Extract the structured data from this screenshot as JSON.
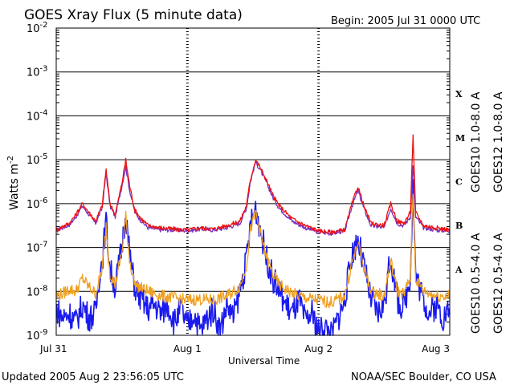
{
  "chart_data": {
    "type": "line",
    "title": "GOES Xray Flux (5 minute data)",
    "begin_label": "Begin:  2005 Jul 31 0000 UTC",
    "xlabel": "Universal Time",
    "ylabel_main": "Watts m",
    "ylabel_sup": "-2",
    "x_range_days": [
      0,
      3
    ],
    "x_ticks": [
      {
        "day": 0,
        "label": "Jul 31"
      },
      {
        "day": 1,
        "label": "Aug 1"
      },
      {
        "day": 2,
        "label": "Aug 2"
      },
      {
        "day": 3,
        "label": "Aug 3"
      }
    ],
    "y_scale": "log",
    "ylim_exponent": [
      -9,
      -2
    ],
    "y_ticks": [
      {
        "exp": -2,
        "label": "-2"
      },
      {
        "exp": -3,
        "label": "-3"
      },
      {
        "exp": -4,
        "label": "-4"
      },
      {
        "exp": -5,
        "label": "-5"
      },
      {
        "exp": -6,
        "label": "-6"
      },
      {
        "exp": -7,
        "label": "-7"
      },
      {
        "exp": -8,
        "label": "-8"
      },
      {
        "exp": -9,
        "label": "-9"
      }
    ],
    "flare_classes": [
      {
        "label": "X",
        "exp": -3.5
      },
      {
        "label": "M",
        "exp": -4.5
      },
      {
        "label": "C",
        "exp": -5.5
      },
      {
        "label": "B",
        "exp": -6.5
      },
      {
        "label": "A",
        "exp": -7.5
      }
    ],
    "series": [
      {
        "name": "GOES10 1.0-8.0 A",
        "color": "#7b2fbe",
        "points": [
          [
            0,
            -6.62
          ],
          [
            0.05,
            -6.55
          ],
          [
            0.1,
            -6.48
          ],
          [
            0.15,
            -6.3
          ],
          [
            0.2,
            -6.05
          ],
          [
            0.25,
            -6.25
          ],
          [
            0.3,
            -6.45
          ],
          [
            0.35,
            -6.1
          ],
          [
            0.38,
            -5.3
          ],
          [
            0.41,
            -6.05
          ],
          [
            0.45,
            -6.3
          ],
          [
            0.5,
            -5.6
          ],
          [
            0.53,
            -5.15
          ],
          [
            0.56,
            -5.7
          ],
          [
            0.6,
            -6.2
          ],
          [
            0.65,
            -6.4
          ],
          [
            0.7,
            -6.55
          ],
          [
            0.8,
            -6.6
          ],
          [
            0.9,
            -6.6
          ],
          [
            1.0,
            -6.62
          ],
          [
            1.1,
            -6.58
          ],
          [
            1.2,
            -6.6
          ],
          [
            1.3,
            -6.55
          ],
          [
            1.4,
            -6.45
          ],
          [
            1.45,
            -6.1
          ],
          [
            1.48,
            -5.5
          ],
          [
            1.52,
            -5.05
          ],
          [
            1.55,
            -5.2
          ],
          [
            1.6,
            -5.5
          ],
          [
            1.65,
            -5.85
          ],
          [
            1.7,
            -6.1
          ],
          [
            1.8,
            -6.4
          ],
          [
            1.9,
            -6.55
          ],
          [
            2.0,
            -6.65
          ],
          [
            2.1,
            -6.68
          ],
          [
            2.2,
            -6.62
          ],
          [
            2.25,
            -6.1
          ],
          [
            2.3,
            -5.7
          ],
          [
            2.35,
            -6.15
          ],
          [
            2.4,
            -6.5
          ],
          [
            2.5,
            -6.55
          ],
          [
            2.55,
            -6.1
          ],
          [
            2.6,
            -6.45
          ],
          [
            2.65,
            -6.5
          ],
          [
            2.7,
            -6.3
          ],
          [
            2.72,
            -5.1
          ],
          [
            2.74,
            -6.3
          ],
          [
            2.8,
            -6.55
          ],
          [
            2.9,
            -6.6
          ],
          [
            3.0,
            -6.62
          ]
        ]
      },
      {
        "name": "GOES12 1.0-8.0 A",
        "color": "#ee1111",
        "points": [
          [
            0,
            -6.6
          ],
          [
            0.05,
            -6.52
          ],
          [
            0.1,
            -6.45
          ],
          [
            0.15,
            -6.25
          ],
          [
            0.2,
            -6.0
          ],
          [
            0.25,
            -6.2
          ],
          [
            0.3,
            -6.4
          ],
          [
            0.35,
            -6.05
          ],
          [
            0.38,
            -5.22
          ],
          [
            0.41,
            -6.0
          ],
          [
            0.45,
            -6.25
          ],
          [
            0.5,
            -5.55
          ],
          [
            0.53,
            -5.0
          ],
          [
            0.56,
            -5.6
          ],
          [
            0.6,
            -6.15
          ],
          [
            0.65,
            -6.35
          ],
          [
            0.7,
            -6.5
          ],
          [
            0.8,
            -6.55
          ],
          [
            0.9,
            -6.58
          ],
          [
            1.0,
            -6.6
          ],
          [
            1.1,
            -6.55
          ],
          [
            1.2,
            -6.58
          ],
          [
            1.3,
            -6.5
          ],
          [
            1.4,
            -6.4
          ],
          [
            1.45,
            -6.05
          ],
          [
            1.48,
            -5.45
          ],
          [
            1.52,
            -5.0
          ],
          [
            1.55,
            -5.15
          ],
          [
            1.6,
            -5.45
          ],
          [
            1.65,
            -5.8
          ],
          [
            1.7,
            -6.05
          ],
          [
            1.8,
            -6.35
          ],
          [
            1.9,
            -6.5
          ],
          [
            2.0,
            -6.62
          ],
          [
            2.1,
            -6.65
          ],
          [
            2.2,
            -6.6
          ],
          [
            2.25,
            -6.05
          ],
          [
            2.3,
            -5.6
          ],
          [
            2.35,
            -6.1
          ],
          [
            2.4,
            -6.45
          ],
          [
            2.5,
            -6.5
          ],
          [
            2.55,
            -6.0
          ],
          [
            2.6,
            -6.4
          ],
          [
            2.65,
            -6.45
          ],
          [
            2.7,
            -6.2
          ],
          [
            2.72,
            -4.45
          ],
          [
            2.74,
            -6.2
          ],
          [
            2.8,
            -6.5
          ],
          [
            2.9,
            -6.55
          ],
          [
            3.0,
            -6.6
          ]
        ]
      },
      {
        "name": "GOES10 0.5-4.0 A",
        "color": "#f0a020",
        "points": [
          [
            0,
            -8.1
          ],
          [
            0.05,
            -8.05
          ],
          [
            0.1,
            -7.95
          ],
          [
            0.15,
            -8.0
          ],
          [
            0.2,
            -7.7
          ],
          [
            0.25,
            -7.9
          ],
          [
            0.3,
            -8.05
          ],
          [
            0.35,
            -7.5
          ],
          [
            0.38,
            -6.5
          ],
          [
            0.41,
            -7.6
          ],
          [
            0.45,
            -7.85
          ],
          [
            0.5,
            -7.1
          ],
          [
            0.53,
            -6.3
          ],
          [
            0.56,
            -7.3
          ],
          [
            0.6,
            -7.85
          ],
          [
            0.7,
            -8.0
          ],
          [
            0.8,
            -8.1
          ],
          [
            0.9,
            -8.15
          ],
          [
            1.0,
            -8.2
          ],
          [
            1.1,
            -8.18
          ],
          [
            1.2,
            -8.2
          ],
          [
            1.3,
            -8.1
          ],
          [
            1.4,
            -7.9
          ],
          [
            1.45,
            -7.4
          ],
          [
            1.48,
            -6.6
          ],
          [
            1.52,
            -6.2
          ],
          [
            1.55,
            -6.6
          ],
          [
            1.6,
            -7.2
          ],
          [
            1.65,
            -7.6
          ],
          [
            1.7,
            -7.85
          ],
          [
            1.8,
            -8.05
          ],
          [
            1.9,
            -8.15
          ],
          [
            2.0,
            -8.2
          ],
          [
            2.1,
            -8.25
          ],
          [
            2.2,
            -8.1
          ],
          [
            2.25,
            -7.4
          ],
          [
            2.3,
            -6.9
          ],
          [
            2.35,
            -7.5
          ],
          [
            2.4,
            -8.0
          ],
          [
            2.5,
            -8.1
          ],
          [
            2.55,
            -7.3
          ],
          [
            2.6,
            -8.0
          ],
          [
            2.65,
            -8.05
          ],
          [
            2.7,
            -7.7
          ],
          [
            2.72,
            -5.7
          ],
          [
            2.74,
            -7.7
          ],
          [
            2.8,
            -8.0
          ],
          [
            2.9,
            -8.1
          ],
          [
            3.0,
            -8.1
          ]
        ]
      },
      {
        "name": "GOES12 0.5-4.0 A",
        "color": "#1a1aee",
        "points": [
          [
            0,
            -8.4
          ],
          [
            0.05,
            -8.6
          ],
          [
            0.1,
            -8.5
          ],
          [
            0.15,
            -8.7
          ],
          [
            0.2,
            -8.3
          ],
          [
            0.25,
            -8.6
          ],
          [
            0.3,
            -8.5
          ],
          [
            0.33,
            -7.6
          ],
          [
            0.35,
            -7.3
          ],
          [
            0.38,
            -6.4
          ],
          [
            0.41,
            -7.5
          ],
          [
            0.45,
            -7.9
          ],
          [
            0.5,
            -7.0
          ],
          [
            0.53,
            -6.2
          ],
          [
            0.56,
            -7.2
          ],
          [
            0.6,
            -7.9
          ],
          [
            0.65,
            -8.2
          ],
          [
            0.7,
            -8.4
          ],
          [
            0.75,
            -8.3
          ],
          [
            0.8,
            -8.5
          ],
          [
            0.85,
            -8.3
          ],
          [
            0.9,
            -8.7
          ],
          [
            0.95,
            -8.4
          ],
          [
            1.0,
            -8.8
          ],
          [
            1.05,
            -8.5
          ],
          [
            1.1,
            -8.9
          ],
          [
            1.15,
            -8.6
          ],
          [
            1.2,
            -8.4
          ],
          [
            1.25,
            -8.9
          ],
          [
            1.3,
            -8.3
          ],
          [
            1.35,
            -8.6
          ],
          [
            1.4,
            -8.0
          ],
          [
            1.45,
            -7.3
          ],
          [
            1.48,
            -6.5
          ],
          [
            1.52,
            -6.1
          ],
          [
            1.55,
            -6.5
          ],
          [
            1.6,
            -7.2
          ],
          [
            1.65,
            -7.7
          ],
          [
            1.7,
            -8.0
          ],
          [
            1.75,
            -8.3
          ],
          [
            1.8,
            -8.5
          ],
          [
            1.85,
            -8.2
          ],
          [
            1.9,
            -8.7
          ],
          [
            1.95,
            -8.5
          ],
          [
            2.0,
            -8.9
          ],
          [
            2.05,
            -8.8
          ],
          [
            2.1,
            -9.0
          ],
          [
            2.15,
            -8.6
          ],
          [
            2.2,
            -8.2
          ],
          [
            2.25,
            -7.2
          ],
          [
            2.3,
            -6.8
          ],
          [
            2.35,
            -7.5
          ],
          [
            2.4,
            -8.2
          ],
          [
            2.45,
            -8.5
          ],
          [
            2.5,
            -8.3
          ],
          [
            2.55,
            -7.2
          ],
          [
            2.6,
            -8.2
          ],
          [
            2.65,
            -8.4
          ],
          [
            2.7,
            -7.6
          ],
          [
            2.72,
            -5.6
          ],
          [
            2.74,
            -7.6
          ],
          [
            2.8,
            -8.2
          ],
          [
            2.85,
            -8.5
          ],
          [
            2.9,
            -8.3
          ],
          [
            2.95,
            -8.6
          ],
          [
            3.0,
            -8.4
          ]
        ]
      }
    ],
    "footer_left": "Updated 2005 Aug  2 23:56:05 UTC",
    "footer_right": "NOAA/SEC Boulder, CO USA"
  }
}
